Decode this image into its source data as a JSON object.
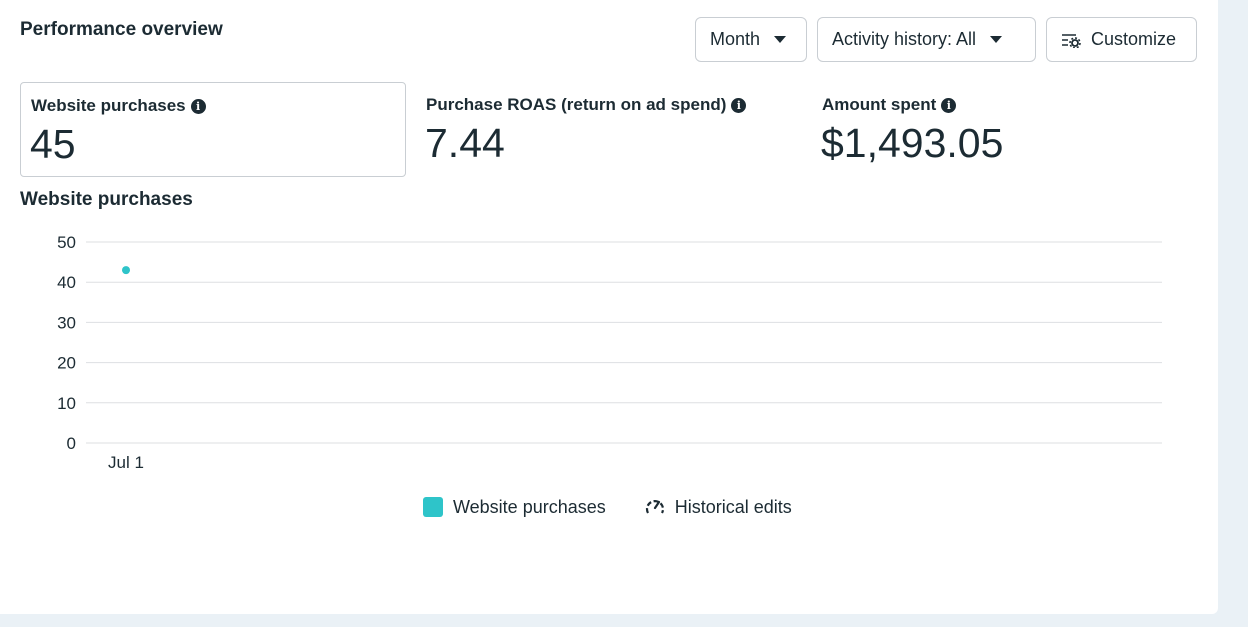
{
  "header": {
    "title": "Performance overview",
    "period_label": "Month",
    "activity_label": "Activity history: All",
    "customize_label": "Customize"
  },
  "metrics": [
    {
      "label": "Website purchases",
      "value": "45",
      "selected": true
    },
    {
      "label": "Purchase ROAS (return on ad spend)",
      "value": "7.44",
      "selected": false
    },
    {
      "label": "Amount spent",
      "value": "$1,493.05",
      "selected": false
    }
  ],
  "chart_title": "Website purchases",
  "chart_data": {
    "type": "line",
    "x": [
      "Jul 1"
    ],
    "series": [
      {
        "name": "Website purchases",
        "values": [
          43
        ],
        "color": "#2ec4c9"
      }
    ],
    "ylim": [
      0,
      50
    ],
    "yticks": [
      0,
      10,
      20,
      30,
      40,
      50
    ],
    "grid": true,
    "legend": "bottom"
  },
  "legend": {
    "series_label": "Website purchases",
    "edits_label": "Historical edits",
    "series_color": "#2ec4c9"
  },
  "colors": {
    "text": "#1c2b33",
    "border": "#c9ced3",
    "grid": "#dddfe2",
    "accent": "#2ec4c9"
  }
}
